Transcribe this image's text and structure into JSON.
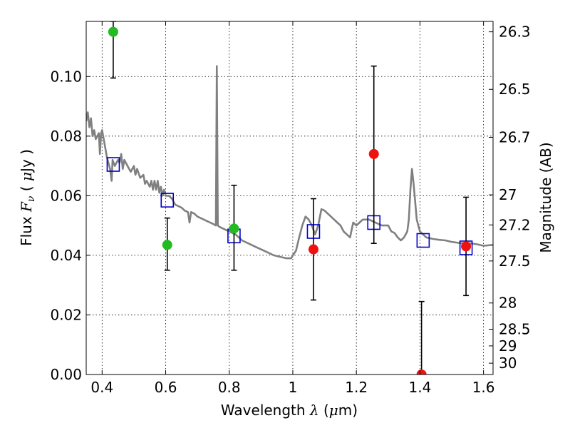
{
  "chart_data": {
    "type": "scatter",
    "xlabel": "Wavelength  λ (μm)",
    "xlabel_parts": [
      "Wavelength  ",
      "λ",
      " (",
      "μ",
      "m)"
    ],
    "ylabel": "Flux  Fν  ( μJy )",
    "ylabel_parts": [
      "Flux  ",
      "F",
      "ν",
      "  ( ",
      "μ",
      "Jy )"
    ],
    "ylabel_right": "Magnitude (AB)",
    "xlim": [
      0.35,
      1.63
    ],
    "ylim": [
      0.0,
      0.1185
    ],
    "xticks": [
      0.4,
      0.6,
      0.8,
      1.0,
      1.2,
      1.4,
      1.6
    ],
    "xtick_labels": [
      "0.4",
      "0.6",
      "0.8",
      "1",
      "1.2",
      "1.4",
      "1.6"
    ],
    "yticks": [
      0.0,
      0.02,
      0.04,
      0.06,
      0.08,
      0.1
    ],
    "ytick_labels": [
      "0.00",
      "0.02",
      "0.04",
      "0.06",
      "0.08",
      "0.10"
    ],
    "right_ticks": [
      {
        "label": "26.3",
        "flux": 0.115
      },
      {
        "label": "26.5",
        "flux": 0.0957
      },
      {
        "label": "26.7",
        "flux": 0.0796
      },
      {
        "label": "27",
        "flux": 0.0603
      },
      {
        "label": "27.2",
        "flux": 0.0502
      },
      {
        "label": "27.5",
        "flux": 0.0381
      },
      {
        "label": "28",
        "flux": 0.024
      },
      {
        "label": "28.5",
        "flux": 0.0152
      },
      {
        "label": "29",
        "flux": 0.0096
      },
      {
        "label": "30",
        "flux": 0.0038
      }
    ],
    "grid": true,
    "colors": {
      "template": "#808080",
      "model_boxes": "#0000cc",
      "green": "#22bb22",
      "red": "#ee1111",
      "errorbar": "#000000"
    },
    "series": [
      {
        "name": "template spectrum",
        "type": "line",
        "points": [
          [
            0.35,
            0.085
          ],
          [
            0.355,
            0.088
          ],
          [
            0.36,
            0.083
          ],
          [
            0.365,
            0.086
          ],
          [
            0.37,
            0.08
          ],
          [
            0.375,
            0.082
          ],
          [
            0.38,
            0.079
          ],
          [
            0.385,
            0.08
          ],
          [
            0.39,
            0.081
          ],
          [
            0.393,
            0.074
          ],
          [
            0.397,
            0.081
          ],
          [
            0.4,
            0.082
          ],
          [
            0.41,
            0.076
          ],
          [
            0.415,
            0.073
          ],
          [
            0.42,
            0.071
          ],
          [
            0.425,
            0.069
          ],
          [
            0.43,
            0.065
          ],
          [
            0.433,
            0.072
          ],
          [
            0.44,
            0.07
          ],
          [
            0.45,
            0.072
          ],
          [
            0.455,
            0.071
          ],
          [
            0.46,
            0.074
          ],
          [
            0.465,
            0.069
          ],
          [
            0.47,
            0.072
          ],
          [
            0.48,
            0.07
          ],
          [
            0.49,
            0.068
          ],
          [
            0.5,
            0.07
          ],
          [
            0.505,
            0.067
          ],
          [
            0.51,
            0.069
          ],
          [
            0.52,
            0.066
          ],
          [
            0.53,
            0.067
          ],
          [
            0.535,
            0.064
          ],
          [
            0.54,
            0.065
          ],
          [
            0.55,
            0.063
          ],
          [
            0.555,
            0.065
          ],
          [
            0.56,
            0.062
          ],
          [
            0.565,
            0.065
          ],
          [
            0.57,
            0.062
          ],
          [
            0.575,
            0.065
          ],
          [
            0.58,
            0.061
          ],
          [
            0.585,
            0.063
          ],
          [
            0.59,
            0.06
          ],
          [
            0.595,
            0.062
          ],
          [
            0.6,
            0.06
          ],
          [
            0.61,
            0.06
          ],
          [
            0.62,
            0.059
          ],
          [
            0.63,
            0.057
          ],
          [
            0.64,
            0.0565
          ],
          [
            0.65,
            0.056
          ],
          [
            0.66,
            0.055
          ],
          [
            0.67,
            0.0545
          ],
          [
            0.675,
            0.051
          ],
          [
            0.68,
            0.0545
          ],
          [
            0.69,
            0.054
          ],
          [
            0.7,
            0.053
          ],
          [
            0.71,
            0.0525
          ],
          [
            0.72,
            0.052
          ],
          [
            0.73,
            0.0515
          ],
          [
            0.74,
            0.051
          ],
          [
            0.75,
            0.0505
          ],
          [
            0.758,
            0.05
          ],
          [
            0.761,
            0.1035
          ],
          [
            0.764,
            0.05
          ],
          [
            0.77,
            0.0495
          ],
          [
            0.78,
            0.049
          ],
          [
            0.79,
            0.0485
          ],
          [
            0.8,
            0.048
          ],
          [
            0.82,
            0.047
          ],
          [
            0.84,
            0.045
          ],
          [
            0.86,
            0.044
          ],
          [
            0.88,
            0.043
          ],
          [
            0.9,
            0.042
          ],
          [
            0.92,
            0.041
          ],
          [
            0.94,
            0.04
          ],
          [
            0.96,
            0.0395
          ],
          [
            0.98,
            0.039
          ],
          [
            0.995,
            0.039
          ],
          [
            1.0,
            0.04
          ],
          [
            1.01,
            0.0415
          ],
          [
            1.02,
            0.046
          ],
          [
            1.03,
            0.05
          ],
          [
            1.04,
            0.053
          ],
          [
            1.05,
            0.052
          ],
          [
            1.06,
            0.05
          ],
          [
            1.07,
            0.047
          ],
          [
            1.08,
            0.05
          ],
          [
            1.09,
            0.0555
          ],
          [
            1.1,
            0.055
          ],
          [
            1.11,
            0.054
          ],
          [
            1.12,
            0.053
          ],
          [
            1.13,
            0.052
          ],
          [
            1.14,
            0.051
          ],
          [
            1.15,
            0.05
          ],
          [
            1.16,
            0.048
          ],
          [
            1.17,
            0.047
          ],
          [
            1.18,
            0.046
          ],
          [
            1.19,
            0.051
          ],
          [
            1.2,
            0.05
          ],
          [
            1.21,
            0.051
          ],
          [
            1.22,
            0.052
          ],
          [
            1.24,
            0.052
          ],
          [
            1.26,
            0.051
          ],
          [
            1.28,
            0.05
          ],
          [
            1.3,
            0.05
          ],
          [
            1.31,
            0.048
          ],
          [
            1.32,
            0.0475
          ],
          [
            1.33,
            0.046
          ],
          [
            1.34,
            0.045
          ],
          [
            1.35,
            0.046
          ],
          [
            1.36,
            0.048
          ],
          [
            1.365,
            0.052
          ],
          [
            1.37,
            0.062
          ],
          [
            1.375,
            0.069
          ],
          [
            1.38,
            0.064
          ],
          [
            1.385,
            0.058
          ],
          [
            1.39,
            0.052
          ],
          [
            1.4,
            0.048
          ],
          [
            1.42,
            0.046
          ],
          [
            1.44,
            0.0455
          ],
          [
            1.46,
            0.0452
          ],
          [
            1.48,
            0.045
          ],
          [
            1.5,
            0.0445
          ],
          [
            1.52,
            0.0442
          ],
          [
            1.54,
            0.044
          ],
          [
            1.56,
            0.044
          ],
          [
            1.58,
            0.0437
          ],
          [
            1.6,
            0.0432
          ],
          [
            1.63,
            0.0435
          ]
        ]
      },
      {
        "name": "model photometry",
        "type": "square",
        "points": [
          [
            0.435,
            0.0705
          ],
          [
            0.605,
            0.0585
          ],
          [
            0.815,
            0.0465
          ],
          [
            1.065,
            0.048
          ],
          [
            1.255,
            0.051
          ],
          [
            1.41,
            0.045
          ],
          [
            1.545,
            0.0425
          ]
        ]
      },
      {
        "name": "green detections",
        "type": "point",
        "points": [
          {
            "x": 0.435,
            "y": 0.115,
            "ylo": 0.0995,
            "yhi": 0.1185
          },
          {
            "x": 0.605,
            "y": 0.0435,
            "ylo": 0.035,
            "yhi": 0.0525
          },
          {
            "x": 0.815,
            "y": 0.049,
            "ylo": 0.035,
            "yhi": 0.0635
          }
        ]
      },
      {
        "name": "red detections",
        "type": "point",
        "points": [
          {
            "x": 1.065,
            "y": 0.042,
            "ylo": 0.025,
            "yhi": 0.059
          },
          {
            "x": 1.255,
            "y": 0.074,
            "ylo": 0.044,
            "yhi": 0.1035
          },
          {
            "x": 1.405,
            "y": 0.0,
            "ylo": 0.0,
            "yhi": 0.0245
          },
          {
            "x": 1.545,
            "y": 0.043,
            "ylo": 0.0265,
            "yhi": 0.0595
          }
        ]
      }
    ]
  }
}
